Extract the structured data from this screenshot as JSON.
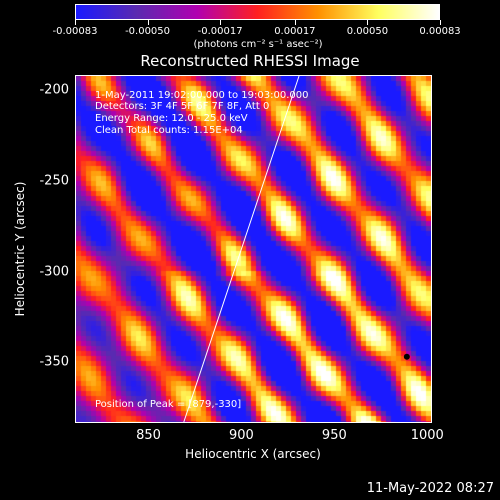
{
  "chart_data": {
    "type": "heatmap",
    "title": "Reconstructed RHESSI Image",
    "xlabel": "Heliocentric X (arcsec)",
    "ylabel": "Heliocentric Y (arcsec)",
    "xlim": [
      811,
      1002
    ],
    "ylim": [
      -383,
      -192
    ],
    "x_ticks": [
      "850",
      "900",
      "950",
      "1000"
    ],
    "y_ticks": [
      "-200",
      "-250",
      "-300",
      "-350"
    ],
    "x_tick_values": [
      850,
      900,
      950,
      1000
    ],
    "y_tick_values": [
      -200,
      -250,
      -300,
      -350
    ],
    "colorbar": {
      "ticks": [
        "-0.00083",
        "-0.00050",
        "-0.00017",
        "0.00017",
        "0.00050",
        "0.00083"
      ],
      "unit": "(photons cm⁻² s⁻¹ asec⁻²)",
      "range": [
        -0.00083,
        0.00083
      ],
      "colors": [
        "#1a1aff",
        "#5a2ab0",
        "#b000b0",
        "#ff2020",
        "#ff9000",
        "#ffff60",
        "#ffffff"
      ]
    },
    "annotations": {
      "time_range": "1-May-2011 19:02:00.000 to 19:03:00.000",
      "detectors": "Detectors: 3F 4F 5F 6F 7F 8F, Att 0",
      "energy_range": "Energy Range: 12.0 - 25.0 keV",
      "clean": "Clean    Total counts: 1.15E+04",
      "peak": "Position of Peak = [879,-330]"
    },
    "peak": [
      879,
      -330
    ],
    "limb_line": [
      [
        869,
        -383
      ],
      [
        931,
        -192
      ]
    ],
    "grid": false
  },
  "footer": {
    "timestamp": "11-May-2022 08:27"
  }
}
